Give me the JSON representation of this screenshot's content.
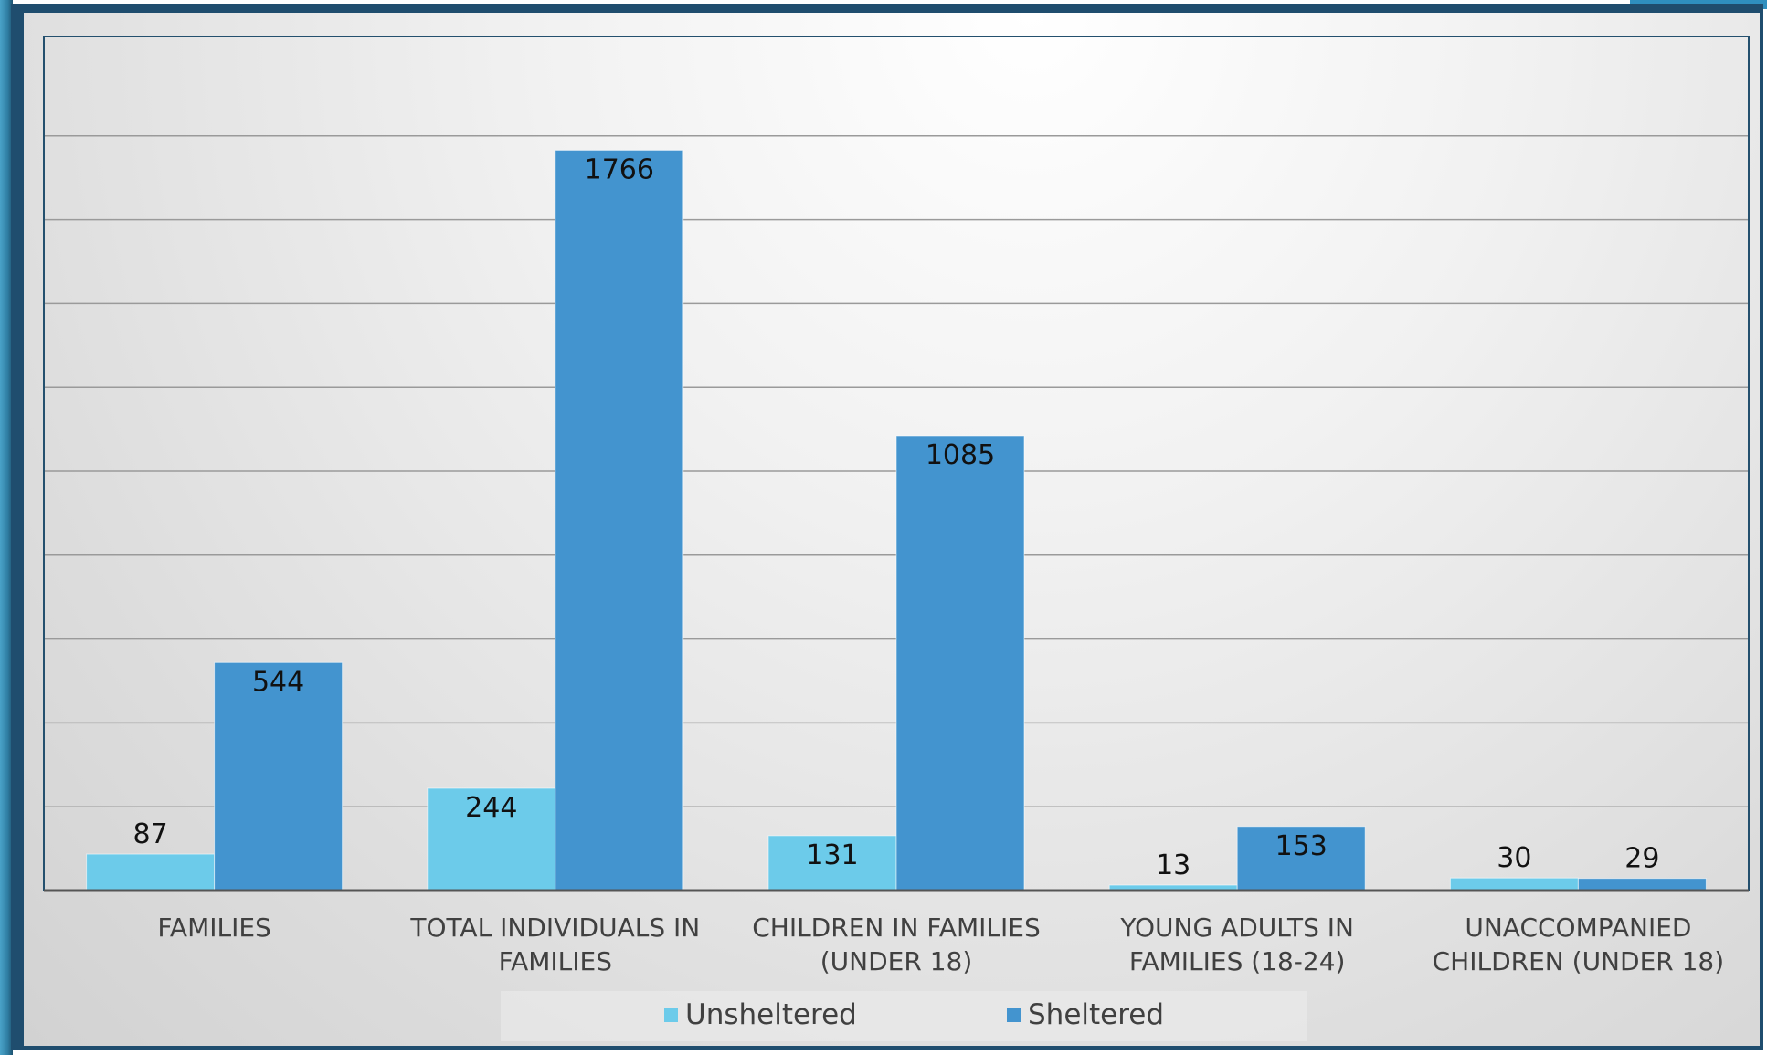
{
  "chart_data": {
    "type": "bar",
    "categories": [
      [
        "FAMILIES"
      ],
      [
        "TOTAL INDIVIDUALS IN",
        "FAMILIES"
      ],
      [
        "CHILDREN IN FAMILIES",
        "(UNDER 18)"
      ],
      [
        "YOUNG ADULTS IN",
        "FAMILIES (18-24)"
      ],
      [
        "UNACCOMPANIED",
        "CHILDREN (UNDER 18)"
      ]
    ],
    "series": [
      {
        "name": "Unsheltered",
        "color": "#6ccbea",
        "values": [
          87,
          244,
          131,
          13,
          30
        ]
      },
      {
        "name": "Sheltered",
        "color": "#4394cf",
        "values": [
          544,
          1766,
          1085,
          153,
          29
        ]
      }
    ],
    "ylim": [
      0,
      2000
    ],
    "y_gridline_step": 200,
    "y_tick_labels_visible": false,
    "grid": true,
    "legend_position": "bottom",
    "data_labels": true
  },
  "legend": {
    "unsheltered_label": "Unsheltered",
    "sheltered_label": "Sheltered"
  }
}
